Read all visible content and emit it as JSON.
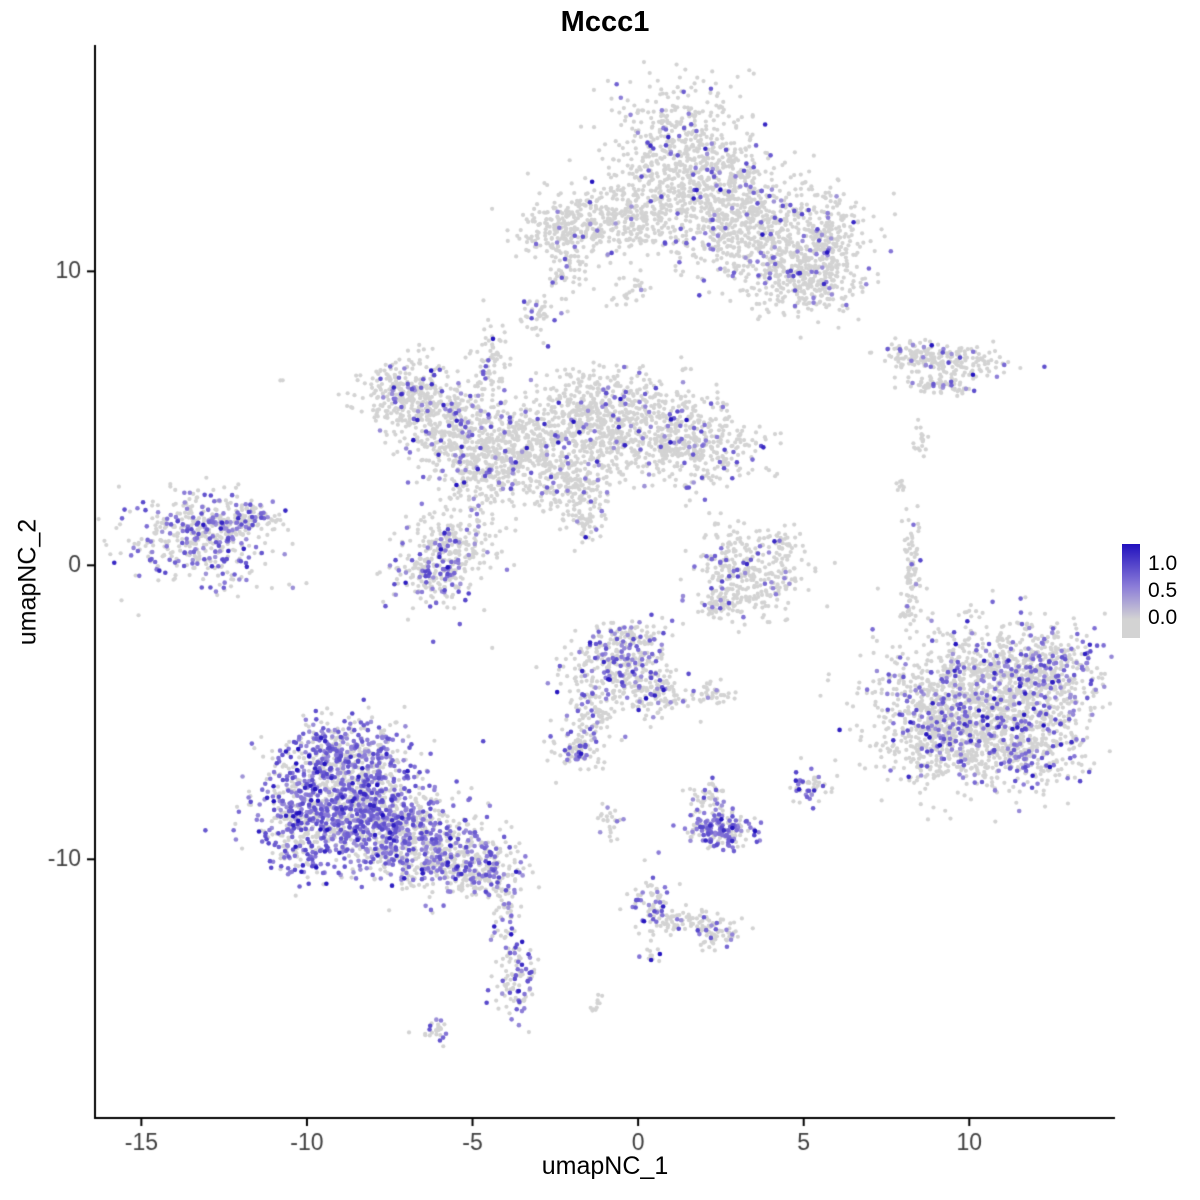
{
  "chart_data": {
    "type": "scatter",
    "title": "Mccc1",
    "xlabel": "umapNC_1",
    "ylabel": "umapNC_2",
    "xlim": [
      -16.4,
      14.4
    ],
    "ylim": [
      -18.8,
      17.7
    ],
    "x_ticks": [
      -15,
      -10,
      -5,
      0,
      5,
      10
    ],
    "y_ticks": [
      -10,
      0,
      10
    ],
    "grid": false,
    "legend_position": "right",
    "point_radius": 2.1,
    "colors": {
      "low": "#d3d3d3",
      "mid": "#8b7cd8",
      "high": "#2111be",
      "axis": "#000000",
      "tick_text": "#404040"
    },
    "legend": {
      "labels": [
        "1.0",
        "0.5",
        "0.0"
      ],
      "values": [
        1.0,
        0.5,
        0.0
      ]
    },
    "seed": 42,
    "clusters": [
      {
        "cx": 1.2,
        "cy": 14.2,
        "rx": 1.1,
        "ry": 1.2,
        "n": 500,
        "frac": 0.06
      },
      {
        "cx": 2.6,
        "cy": 12.3,
        "rx": 1.4,
        "ry": 1.0,
        "n": 600,
        "frac": 0.06
      },
      {
        "cx": 4.3,
        "cy": 10.8,
        "rx": 1.2,
        "ry": 0.9,
        "n": 500,
        "frac": 0.08
      },
      {
        "cx": 5.8,
        "cy": 11.3,
        "rx": 0.5,
        "ry": 0.6,
        "n": 120,
        "frac": 0.08
      },
      {
        "cx": 5.3,
        "cy": 9.6,
        "rx": 0.7,
        "ry": 0.6,
        "n": 200,
        "frac": 0.08
      },
      {
        "cx": -2.3,
        "cy": 11.4,
        "rx": 0.8,
        "ry": 0.5,
        "n": 220,
        "frac": 0.05
      },
      {
        "cx": -0.6,
        "cy": 11.8,
        "rx": 0.9,
        "ry": 0.7,
        "n": 250,
        "frac": 0.04
      },
      {
        "cx": -2.1,
        "cy": 9.9,
        "rx": 0.3,
        "ry": 0.4,
        "n": 40,
        "frac": 0.05
      },
      {
        "cx": -3.0,
        "cy": 8.5,
        "rx": 0.3,
        "ry": 0.35,
        "n": 40,
        "frac": 0.1
      },
      {
        "cx": -0.2,
        "cy": 9.3,
        "rx": 0.4,
        "ry": 0.4,
        "n": 25,
        "frac": 0.05
      },
      {
        "cx": 8.3,
        "cy": 7.2,
        "rx": 0.5,
        "ry": 0.25,
        "n": 90,
        "frac": 0.1
      },
      {
        "cx": 9.6,
        "cy": 6.9,
        "rx": 0.8,
        "ry": 0.3,
        "n": 140,
        "frac": 0.12
      },
      {
        "cx": 9.2,
        "cy": 6.1,
        "rx": 0.6,
        "ry": 0.15,
        "n": 60,
        "frac": 0.08
      },
      {
        "cx": 8.6,
        "cy": 4.3,
        "rx": 0.15,
        "ry": 0.3,
        "n": 18,
        "frac": 0
      },
      {
        "cx": -10.8,
        "cy": 6.3,
        "rx": 0.08,
        "ry": 0.08,
        "n": 2,
        "frac": 0
      },
      {
        "cx": -7.0,
        "cy": 5.9,
        "rx": 0.7,
        "ry": 0.6,
        "n": 280,
        "frac": 0.12
      },
      {
        "cx": -5.8,
        "cy": 4.8,
        "rx": 0.8,
        "ry": 0.7,
        "n": 300,
        "frac": 0.1
      },
      {
        "cx": -4.6,
        "cy": 3.4,
        "rx": 0.9,
        "ry": 0.8,
        "n": 350,
        "frac": 0.12
      },
      {
        "cx": -3.0,
        "cy": 4.2,
        "rx": 1.0,
        "ry": 0.8,
        "n": 350,
        "frac": 0.08
      },
      {
        "cx": -1.4,
        "cy": 5.2,
        "rx": 1.0,
        "ry": 0.8,
        "n": 350,
        "frac": 0.08
      },
      {
        "cx": 0.3,
        "cy": 4.6,
        "rx": 1.2,
        "ry": 0.9,
        "n": 450,
        "frac": 0.07
      },
      {
        "cx": 2.0,
        "cy": 3.9,
        "rx": 0.9,
        "ry": 0.6,
        "n": 250,
        "frac": 0.1
      },
      {
        "cx": -4.4,
        "cy": 6.9,
        "rx": 0.25,
        "ry": 0.7,
        "n": 70,
        "frac": 0.12
      },
      {
        "cx": -2.0,
        "cy": 2.7,
        "rx": 0.6,
        "ry": 0.5,
        "n": 150,
        "frac": 0.08
      },
      {
        "cx": -1.6,
        "cy": 1.5,
        "rx": 0.3,
        "ry": 0.5,
        "n": 60,
        "frac": 0.1
      },
      {
        "cx": -13.2,
        "cy": 0.9,
        "rx": 1.1,
        "ry": 0.8,
        "n": 450,
        "frac": 0.3
      },
      {
        "cx": -11.8,
        "cy": 1.6,
        "rx": 0.5,
        "ry": 0.35,
        "n": 90,
        "frac": 0.25
      },
      {
        "cx": -6.2,
        "cy": -0.3,
        "rx": 0.6,
        "ry": 0.6,
        "n": 200,
        "frac": 0.3
      },
      {
        "cx": -5.4,
        "cy": 0.8,
        "rx": 0.6,
        "ry": 0.6,
        "n": 180,
        "frac": 0.12
      },
      {
        "cx": 2.8,
        "cy": 0.3,
        "rx": 0.5,
        "ry": 0.6,
        "n": 120,
        "frac": 0.1
      },
      {
        "cx": 3.6,
        "cy": -0.6,
        "rx": 0.7,
        "ry": 0.6,
        "n": 170,
        "frac": 0.08
      },
      {
        "cx": 2.6,
        "cy": -1.3,
        "rx": 0.4,
        "ry": 0.3,
        "n": 70,
        "frac": 0.1
      },
      {
        "cx": 4.4,
        "cy": 0.6,
        "rx": 0.3,
        "ry": 0.4,
        "n": 50,
        "frac": 0.05
      },
      {
        "cx": 8.25,
        "cy": 0.0,
        "rx": 0.15,
        "ry": 0.8,
        "n": 70,
        "frac": 0.05
      },
      {
        "cx": 8.1,
        "cy": -1.6,
        "rx": 0.12,
        "ry": 0.3,
        "n": 18,
        "frac": 0
      },
      {
        "cx": 7.9,
        "cy": 2.6,
        "rx": 0.1,
        "ry": 0.15,
        "n": 8,
        "frac": 0
      },
      {
        "cx": 10.6,
        "cy": -4.6,
        "rx": 1.6,
        "ry": 1.3,
        "n": 1300,
        "frac": 0.18
      },
      {
        "cx": 9.0,
        "cy": -5.6,
        "rx": 0.8,
        "ry": 0.9,
        "n": 350,
        "frac": 0.15
      },
      {
        "cx": 12.3,
        "cy": -3.6,
        "rx": 0.8,
        "ry": 0.8,
        "n": 300,
        "frac": 0.18
      },
      {
        "cx": 11.6,
        "cy": -6.4,
        "rx": 0.9,
        "ry": 0.6,
        "n": 250,
        "frac": 0.2
      },
      {
        "cx": -0.7,
        "cy": -3.5,
        "rx": 0.8,
        "ry": 0.7,
        "n": 300,
        "frac": 0.28
      },
      {
        "cx": -0.1,
        "cy": -2.6,
        "rx": 0.5,
        "ry": 0.4,
        "n": 100,
        "frac": 0.2
      },
      {
        "cx": 0.6,
        "cy": -4.4,
        "rx": 0.5,
        "ry": 0.4,
        "n": 100,
        "frac": 0.15
      },
      {
        "cx": -1.3,
        "cy": -5.1,
        "rx": 0.3,
        "ry": 0.4,
        "n": 60,
        "frac": 0.2
      },
      {
        "cx": -1.8,
        "cy": -6.3,
        "rx": 0.4,
        "ry": 0.4,
        "n": 90,
        "frac": 0.35
      },
      {
        "cx": 2.3,
        "cy": -4.2,
        "rx": 0.3,
        "ry": 0.25,
        "n": 40,
        "frac": 0.05
      },
      {
        "cx": -8.8,
        "cy": -6.5,
        "rx": 1.0,
        "ry": 0.7,
        "n": 450,
        "frac": 0.5
      },
      {
        "cx": -9.3,
        "cy": -8.3,
        "rx": 1.1,
        "ry": 0.9,
        "n": 650,
        "frac": 0.55
      },
      {
        "cx": -7.5,
        "cy": -8.8,
        "rx": 1.0,
        "ry": 0.9,
        "n": 550,
        "frac": 0.5
      },
      {
        "cx": -6.0,
        "cy": -9.8,
        "rx": 0.9,
        "ry": 0.7,
        "n": 350,
        "frac": 0.35
      },
      {
        "cx": -4.6,
        "cy": -10.3,
        "rx": 0.6,
        "ry": 0.5,
        "n": 180,
        "frac": 0.3
      },
      {
        "cx": -10.2,
        "cy": -9.3,
        "rx": 0.4,
        "ry": 0.6,
        "n": 120,
        "frac": 0.45
      },
      {
        "cx": -4.0,
        "cy": -11.6,
        "rx": 0.2,
        "ry": 0.5,
        "n": 45,
        "frac": 0.25
      },
      {
        "cx": -3.7,
        "cy": -13.9,
        "rx": 0.3,
        "ry": 0.7,
        "n": 110,
        "frac": 0.35
      },
      {
        "cx": -6.1,
        "cy": -15.9,
        "rx": 0.25,
        "ry": 0.2,
        "n": 25,
        "frac": 0.3
      },
      {
        "cx": -1.2,
        "cy": -14.9,
        "rx": 0.15,
        "ry": 0.15,
        "n": 10,
        "frac": 0.1
      },
      {
        "cx": 0.4,
        "cy": -13.3,
        "rx": 0.15,
        "ry": 0.2,
        "n": 12,
        "frac": 0.3
      },
      {
        "cx": 0.4,
        "cy": -11.4,
        "rx": 0.3,
        "ry": 0.5,
        "n": 70,
        "frac": 0.3
      },
      {
        "cx": 1.2,
        "cy": -12.1,
        "rx": 0.5,
        "ry": 0.25,
        "n": 50,
        "frac": 0.1
      },
      {
        "cx": 2.3,
        "cy": -12.5,
        "rx": 0.4,
        "ry": 0.3,
        "n": 70,
        "frac": 0.25
      },
      {
        "cx": -0.9,
        "cy": -8.7,
        "rx": 0.2,
        "ry": 0.3,
        "n": 25,
        "frac": 0.1
      },
      {
        "cx": 2.5,
        "cy": -9.0,
        "rx": 0.5,
        "ry": 0.35,
        "n": 170,
        "frac": 0.6
      },
      {
        "cx": 2.2,
        "cy": -7.8,
        "rx": 0.3,
        "ry": 0.3,
        "n": 45,
        "frac": 0.25
      },
      {
        "cx": 5.1,
        "cy": -7.6,
        "rx": 0.25,
        "ry": 0.3,
        "n": 45,
        "frac": 0.5
      }
    ]
  }
}
